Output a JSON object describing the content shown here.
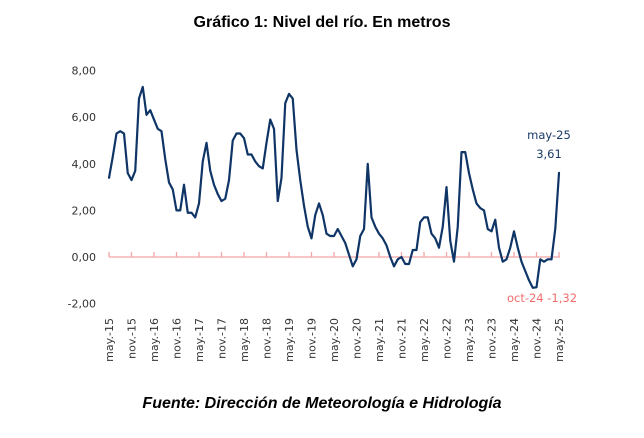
{
  "chart_data": {
    "type": "line",
    "title": "Gráfico 1: Nivel del río. En metros",
    "source": "Fuente: Dirección de Meteorología e Hidrología",
    "xlabel": "",
    "ylabel": "",
    "ylim": [
      -2,
      8
    ],
    "yticks": [
      "8,00",
      "6,00",
      "4,00",
      "2,00",
      "0,00",
      "-2,00"
    ],
    "ytick_values": [
      8,
      6,
      4,
      2,
      0,
      -2
    ],
    "xtick_labels": [
      "may.-15",
      "nov.-15",
      "may.-16",
      "nov.-16",
      "may.-17",
      "nov.-17",
      "may.-18",
      "nov.-18",
      "may.-19",
      "nov.-19",
      "may.-20",
      "nov.-20",
      "may.-21",
      "nov.-21",
      "may.-22",
      "nov.-22",
      "may.-23",
      "nov.-23",
      "may.-24",
      "nov.-24",
      "may.-25"
    ],
    "x_start": "may-15",
    "x_step_months": 1,
    "grid": false,
    "colors": {
      "line": "#0f3566",
      "zero_axis": "#f4a5a5",
      "min_label": "#f26b6b",
      "last_label": "#1b3a66"
    },
    "series": [
      {
        "name": "Nivel del río",
        "values": [
          3.4,
          4.3,
          5.3,
          5.4,
          5.3,
          3.6,
          3.3,
          3.7,
          6.8,
          7.3,
          6.1,
          6.3,
          5.9,
          5.5,
          5.4,
          4.2,
          3.2,
          2.9,
          2.0,
          2.0,
          3.1,
          1.9,
          1.9,
          1.7,
          2.3,
          4.1,
          4.9,
          3.7,
          3.1,
          2.7,
          2.4,
          2.5,
          3.3,
          5.0,
          5.3,
          5.3,
          5.1,
          4.4,
          4.4,
          4.1,
          3.9,
          3.8,
          4.9,
          5.9,
          5.5,
          2.4,
          3.4,
          6.6,
          7.0,
          6.8,
          4.6,
          3.3,
          2.2,
          1.3,
          0.8,
          1.8,
          2.3,
          1.8,
          1.0,
          0.9,
          0.9,
          1.2,
          0.9,
          0.6,
          0.1,
          -0.4,
          -0.1,
          0.9,
          1.2,
          4.0,
          1.7,
          1.3,
          1.0,
          0.8,
          0.5,
          0.0,
          -0.4,
          -0.1,
          0.0,
          -0.3,
          -0.3,
          0.3,
          0.3,
          1.5,
          1.7,
          1.7,
          1.0,
          0.8,
          0.4,
          1.3,
          3.0,
          0.7,
          -0.2,
          1.3,
          4.5,
          4.5,
          3.6,
          2.9,
          2.3,
          2.1,
          2.0,
          1.2,
          1.1,
          1.6,
          0.4,
          -0.2,
          -0.1,
          0.4,
          1.1,
          0.4,
          -0.2,
          -0.6,
          -1.0,
          -1.32,
          -1.3,
          -0.1,
          -0.2,
          -0.1,
          -0.1,
          1.2,
          3.61
        ]
      }
    ],
    "annotations": {
      "last": {
        "label": "may-25",
        "value": "3,61"
      },
      "min": {
        "label": "oct-24 -1,32"
      }
    }
  }
}
